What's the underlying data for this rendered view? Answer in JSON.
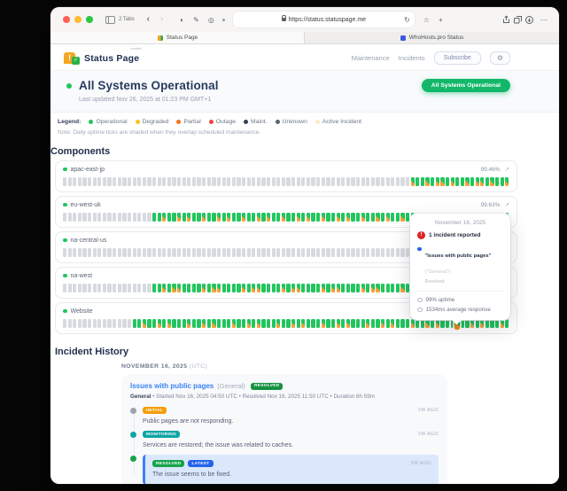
{
  "browser": {
    "tabs_label": "2 Tabs",
    "url": "https://status.statuspage.me",
    "tab1": "Status Page",
    "tab2": "WhoHosts.pro Status"
  },
  "header": {
    "brand": "Status Page",
    "brand_super": "hosted",
    "nav_maintenance": "Maintenance",
    "nav_incidents": "Incidents",
    "subscribe": "Subscribe",
    "gear": "⚙"
  },
  "hero": {
    "title": "All Systems Operational",
    "updated": "Last updated Nov 26, 2025 at 01:23 PM GMT+1",
    "badge": "All Systems Operational"
  },
  "legend": {
    "label": "Legend:",
    "items": [
      {
        "label": "Operational",
        "color": "#22c55e"
      },
      {
        "label": "Degraded",
        "color": "#fbbf24"
      },
      {
        "label": "Partial",
        "color": "#f97316"
      },
      {
        "label": "Outage",
        "color": "#ef4444"
      },
      {
        "label": "Maint.",
        "color": "#2f4157"
      },
      {
        "label": "Unknown",
        "color": "#5b6472"
      },
      {
        "label": "Active Incident",
        "color": "#fbe9c6"
      }
    ],
    "note": "Note: Daily uptime ticks are shaded when they overlap scheduled maintenance."
  },
  "components": {
    "heading": "Components",
    "tick_count": 90,
    "rows": [
      {
        "name": "apac-east-jp",
        "percent": "99.46%",
        "unknown": 70,
        "pattern": "poopoppo"
      },
      {
        "name": "eu-west-uk",
        "percent": "99.63%",
        "unknown": 18,
        "pattern": "oopoopop"
      },
      {
        "name": "na-central-us",
        "percent": "99.72%",
        "unknown": 87,
        "pattern": "o"
      },
      {
        "name": "na-west",
        "percent": "99.58%",
        "unknown": 18,
        "pattern": "oopoppoo"
      },
      {
        "name": "Website",
        "percent": "99.81%",
        "unknown": 14,
        "pattern": "oopoopopo",
        "hover_index": 79
      }
    ],
    "expand_icon": "↗"
  },
  "tooltip": {
    "date": "November 16, 2025",
    "alert_glyph": "!",
    "incident_count": "1 incident reported",
    "incident_title": "\"Issues with public pages\"",
    "incident_scope": " (\"General\")",
    "incident_status": "Resolved",
    "uptime": "99% uptime",
    "response": "1534ms average response"
  },
  "incidents": {
    "heading": "Incident History",
    "date_label": "NOVEMBER 16, 2025 ",
    "date_tz": "(UTC)",
    "incident": {
      "title": "Issues with public pages",
      "scope": "(General)",
      "status_badge": "RESOLVED",
      "meta_bold": "General",
      "meta_rest": " • Started Nov 16, 2025 04:50 UTC • Resolved Nov 16, 2025 11:50 UTC • Duration 6h 59m",
      "updates": [
        {
          "badges": [
            {
              "label": "INITIAL",
              "color": "#f59e0b"
            }
          ],
          "dot": "#9ca3af",
          "time": "1W AGO",
          "text": "Public pages are not responding.",
          "highlight": false
        },
        {
          "badges": [
            {
              "label": "MONITORING",
              "color": "#0ea5a5"
            }
          ],
          "dot": "#0ea5a5",
          "time": "1W AGO",
          "text": "Services are restored; the issue was related to caches.",
          "highlight": false
        },
        {
          "badges": [
            {
              "label": "RESOLVED",
              "color": "#16a34a"
            },
            {
              "label": "LATEST",
              "color": "#2563eb"
            }
          ],
          "dot": "#16a34a",
          "time": "1W AGO",
          "text": "The issue seems to be fixed.",
          "highlight": true
        }
      ]
    }
  }
}
